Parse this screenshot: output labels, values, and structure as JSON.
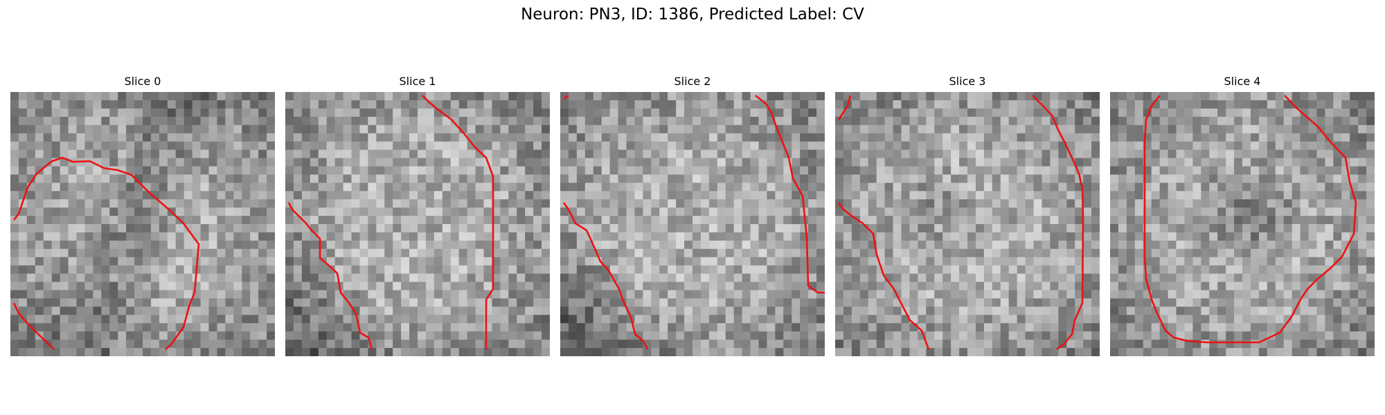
{
  "figure": {
    "title": "Neuron: PN3, ID: 1386, Predicted Label: CV"
  },
  "panels": [
    {
      "title": "Slice 0"
    },
    {
      "title": "Slice 1"
    },
    {
      "title": "Slice 2"
    },
    {
      "title": "Slice 3"
    },
    {
      "title": "Slice 4"
    }
  ],
  "colors": {
    "contour": "#ee1111",
    "background": "#ffffff"
  },
  "image": {
    "colormap": "gray",
    "grid_cells": 32
  }
}
